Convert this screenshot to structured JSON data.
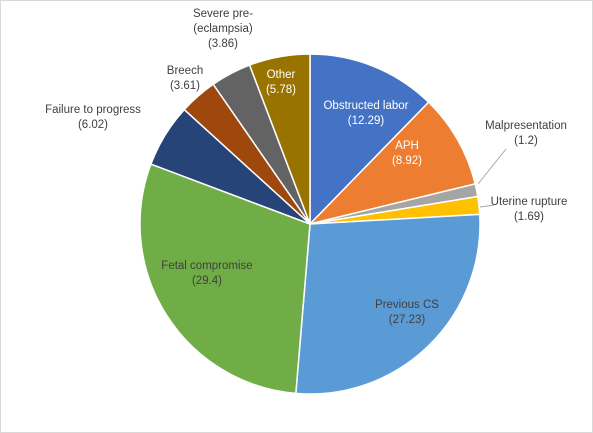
{
  "chart_data": {
    "type": "pie",
    "title": "",
    "slices": [
      {
        "label": "Obstructed labor",
        "value": 12.29,
        "color": "#4472C4"
      },
      {
        "label": "APH",
        "value": 8.92,
        "color": "#ED7D31"
      },
      {
        "label": "Malpresentation",
        "value": 1.2,
        "color": "#A5A5A5"
      },
      {
        "label": "Uterine rupture",
        "value": 1.69,
        "color": "#FFC000"
      },
      {
        "label": "Previous CS",
        "value": 27.23,
        "color": "#5B9BD5"
      },
      {
        "label": "Fetal compromise",
        "value": 29.4,
        "color": "#70AD47"
      },
      {
        "label": "Failure to progress",
        "value": 6.02,
        "color": "#264478"
      },
      {
        "label": "Breech",
        "value": 3.61,
        "color": "#9E480E"
      },
      {
        "label": "Severe pre-eclampsia",
        "value": 3.86,
        "color": "#636363"
      },
      {
        "label": "Other",
        "value": 5.78,
        "color": "#997300"
      }
    ]
  }
}
